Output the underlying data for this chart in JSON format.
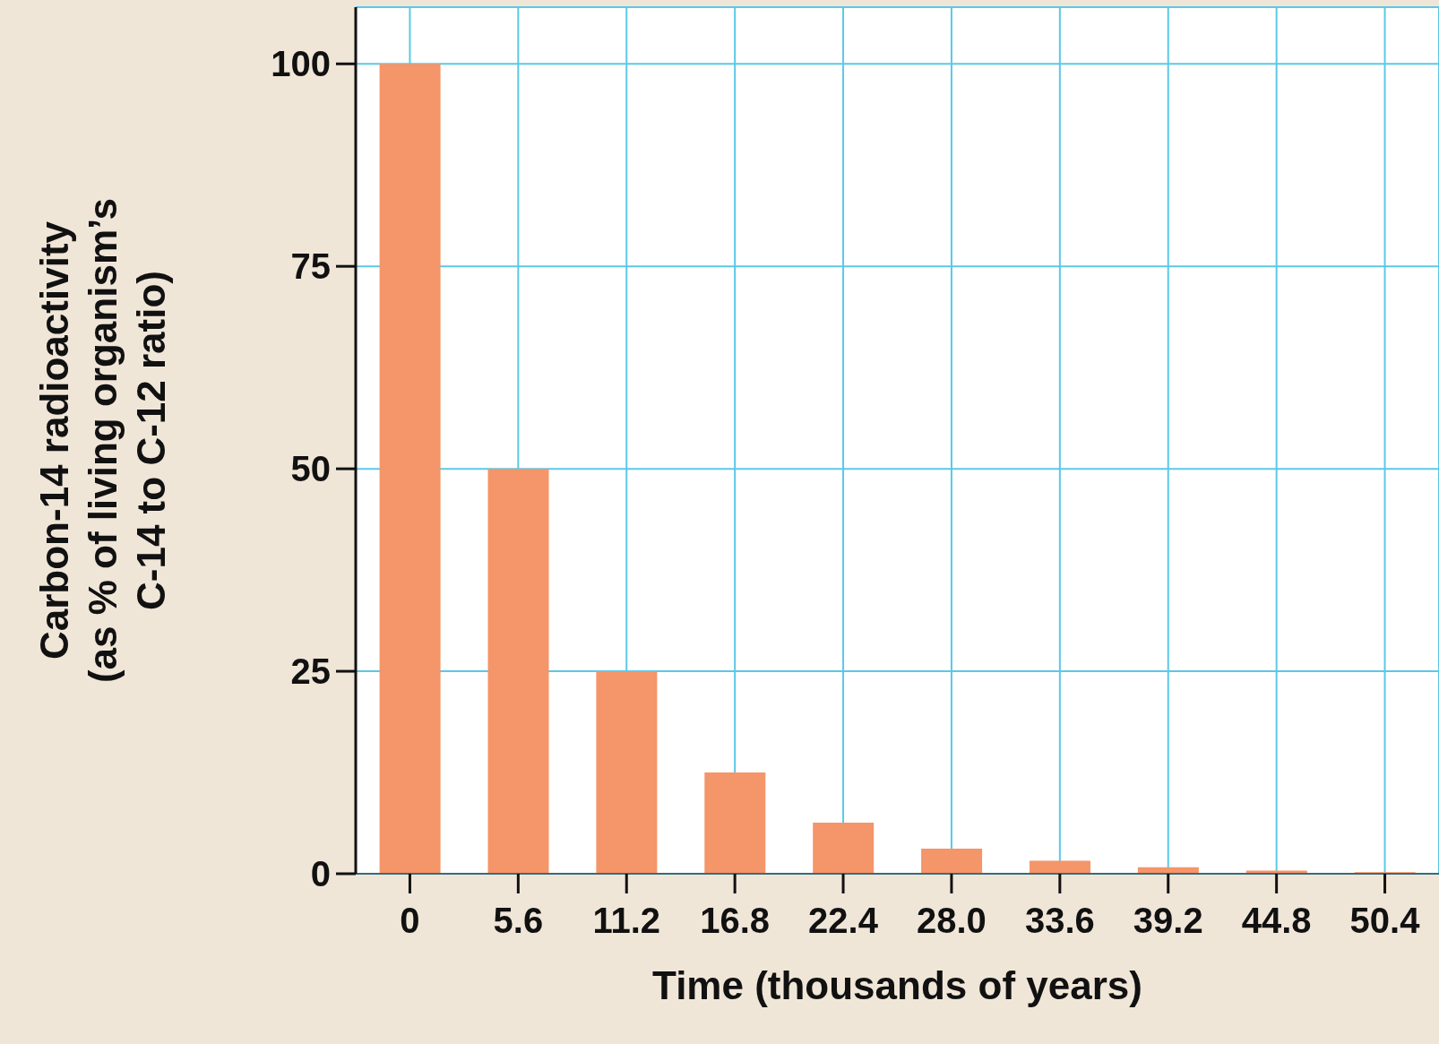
{
  "chart_data": {
    "type": "bar",
    "xlabel": "Time (thousands of years)",
    "ylabel": "Carbon-14 radioactivity (as % of living organism’s C-14 to C-12 ratio)",
    "categories": [
      "0",
      "5.6",
      "11.2",
      "16.8",
      "22.4",
      "28.0",
      "33.6",
      "39.2",
      "44.8",
      "50.4"
    ],
    "values": [
      100,
      50,
      25,
      12.5,
      6.3,
      3.1,
      1.6,
      0.8,
      0.4,
      0.2
    ],
    "color": "#f4956a",
    "ylim": [
      0,
      107
    ],
    "yticks": [
      0,
      25,
      50,
      75,
      100
    ],
    "grid": true
  }
}
